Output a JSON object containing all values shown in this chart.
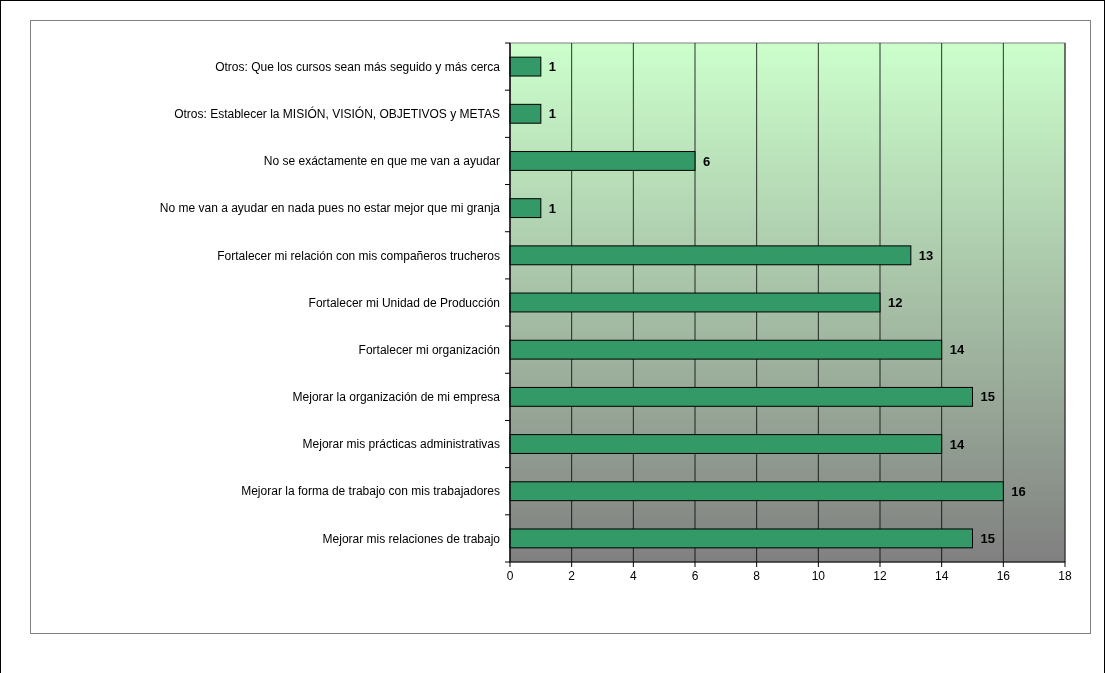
{
  "chart_data": {
    "type": "bar",
    "orientation": "horizontal",
    "categories": [
      "Otros: Que los cursos sean más seguido y más cerca",
      "Otros: Establecer la MISIÓN, VISIÓN, OBJETIVOS y METAS",
      "No se exáctamente en que me van a ayudar",
      "No me van a ayudar en nada pues no estar mejor que mi granja",
      "Fortalecer mi relación con mis compañeros trucheros",
      "Fortalecer mi Unidad de Producción",
      "Fortalecer mi organización",
      "Mejorar la organización de mi empresa",
      "Mejorar mis prácticas administrativas",
      "Mejorar la forma de trabajo con mis trabajadores",
      "Mejorar mis relaciones de trabajo"
    ],
    "values": [
      1,
      1,
      6,
      1,
      13,
      12,
      14,
      15,
      14,
      16,
      15
    ],
    "color": "#339966",
    "xlim": [
      0,
      18
    ],
    "xticks": [
      0,
      2,
      4,
      6,
      8,
      10,
      12,
      14,
      16,
      18
    ],
    "grid": "x",
    "data_labels": true
  }
}
